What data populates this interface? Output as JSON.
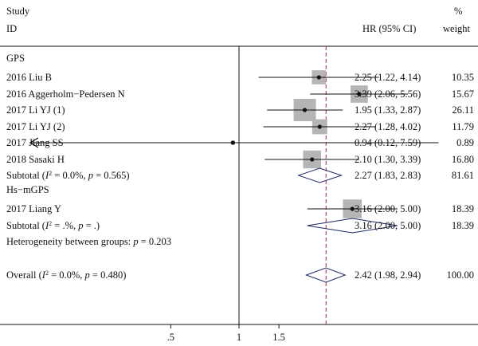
{
  "header": {
    "study": "Study",
    "id": "ID",
    "hr": "HR (95% CI)",
    "pct": "%",
    "weight": "weight"
  },
  "chart_data": {
    "type": "forest",
    "x_scale": "log",
    "xlim": [
      0.12,
      7.6
    ],
    "reference_line": 1,
    "overall_line": 2.42,
    "ticks": [
      {
        "value": 0.5,
        "label": ".5"
      },
      {
        "value": 1,
        "label": "1"
      },
      {
        "value": 1.5,
        "label": "1.5"
      }
    ],
    "groups": [
      {
        "name": "GPS",
        "studies": [
          {
            "label": "2016 Liu B",
            "hr": 2.25,
            "lo": 1.22,
            "hi": 4.14,
            "ci_text": "2.25 (1.22, 4.14)",
            "weight": 10.35,
            "weight_text": "10.35"
          },
          {
            "label": "2016 Aggerholm−Pedersen N",
            "hr": 3.39,
            "lo": 2.06,
            "hi": 5.56,
            "ci_text": "3.39 (2.06, 5.56)",
            "weight": 15.67,
            "weight_text": "15.67"
          },
          {
            "label": "2017 Li YJ (1)",
            "hr": 1.95,
            "lo": 1.33,
            "hi": 2.87,
            "ci_text": "1.95 (1.33, 2.87)",
            "weight": 26.11,
            "weight_text": "26.11"
          },
          {
            "label": "2017 Li YJ (2)",
            "hr": 2.27,
            "lo": 1.28,
            "hi": 4.02,
            "ci_text": "2.27 (1.28, 4.02)",
            "weight": 11.79,
            "weight_text": "11.79"
          },
          {
            "label": "2017 Jiang SS",
            "hr": 0.94,
            "lo": 0.12,
            "hi": 7.59,
            "ci_text": "0.94 (0.12, 7.59)",
            "weight": 0.89,
            "weight_text": "0.89",
            "arrow_left": true
          },
          {
            "label": "2018 Sasaki H",
            "hr": 2.1,
            "lo": 1.3,
            "hi": 3.39,
            "ci_text": "2.10 (1.30, 3.39)",
            "weight": 16.8,
            "weight_text": "16.80"
          }
        ],
        "subtotal": {
          "label_pre": "Subtotal (",
          "i2_sym": "I",
          "i2_sup": "2",
          "label_post": " = 0.0%, ",
          "p_sym": "p",
          "p_val": " = 0.565)",
          "hr": 2.27,
          "lo": 1.83,
          "hi": 2.83,
          "ci_text": "2.27 (1.83, 2.83)",
          "weight_text": "81.61"
        }
      },
      {
        "name": "Hs−mGPS",
        "studies": [
          {
            "label": "2017 Liang Y",
            "hr": 3.16,
            "lo": 2.0,
            "hi": 5.0,
            "ci_text": "3.16 (2.00, 5.00)",
            "weight": 18.39,
            "weight_text": "18.39"
          }
        ],
        "subtotal": {
          "label_pre": "Subtotal (",
          "i2_sym": "I",
          "i2_sup": "2",
          "label_post": " = .%, ",
          "p_sym": "p",
          "p_val": " = .)",
          "hr": 3.16,
          "lo": 2.0,
          "hi": 5.0,
          "ci_text": "3.16 (2.00, 5.00)",
          "weight_text": "18.39"
        }
      }
    ],
    "heterogeneity": {
      "pre": "Heterogeneity between groups: ",
      "p_sym": "p",
      "p_val": " = 0.203"
    },
    "overall": {
      "label_pre": "Overall (",
      "i2_sym": "I",
      "i2_sup": "2",
      "label_post": " = 0.0%, ",
      "p_sym": "p",
      "p_val": " = 0.480)",
      "hr": 2.42,
      "lo": 1.98,
      "hi": 2.94,
      "ci_text": "2.42 (1.98, 2.94)",
      "weight_text": "100.00"
    }
  }
}
